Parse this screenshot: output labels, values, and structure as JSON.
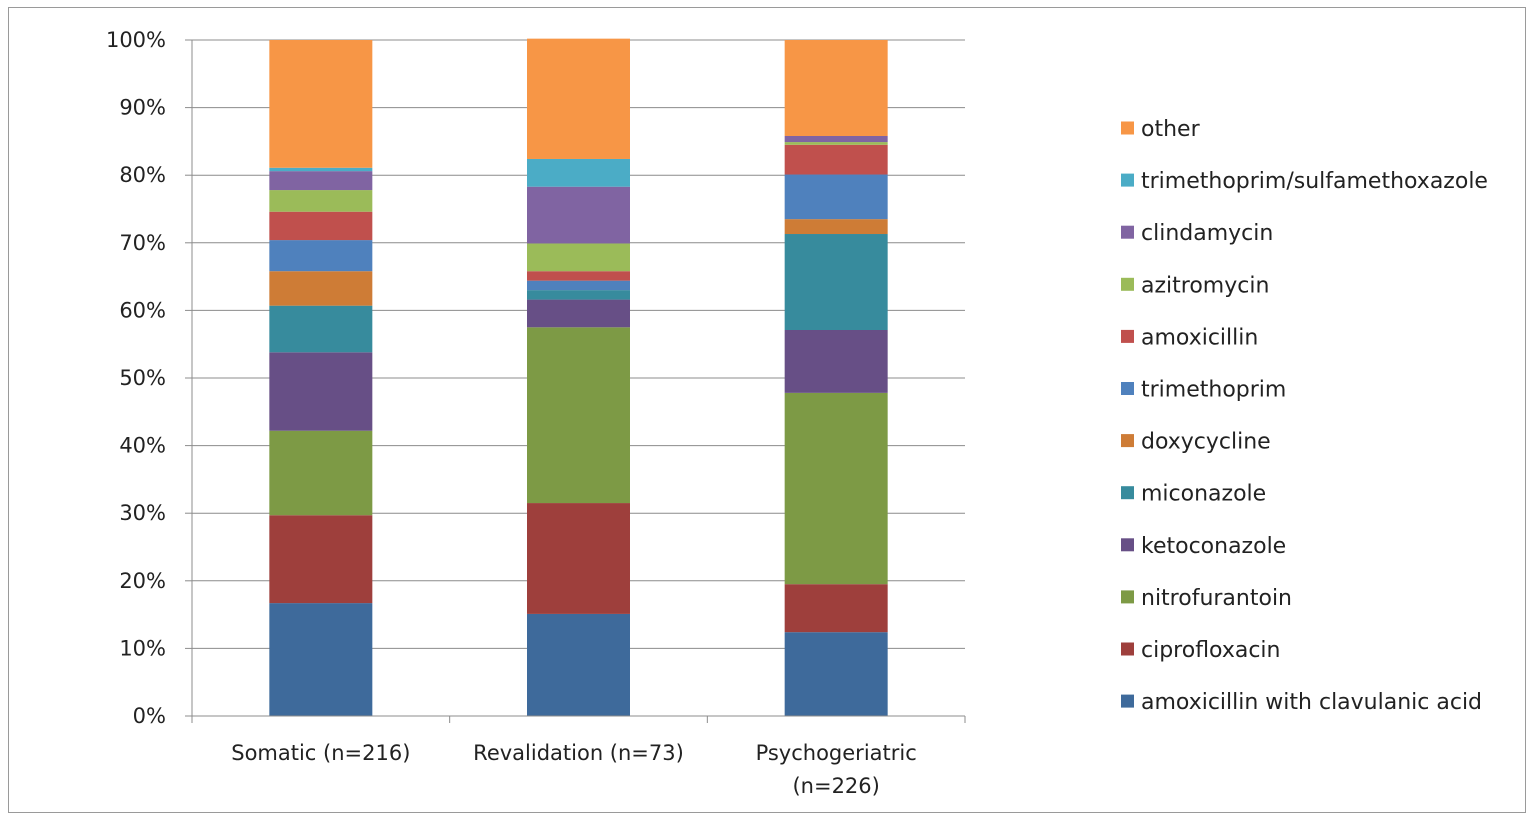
{
  "chart_data": {
    "type": "bar",
    "stacked": true,
    "percent": true,
    "categories": [
      "Somatic (n=216)",
      "Revalidation (n=73)",
      "Psychogeriatric\n(n=226)"
    ],
    "yticks": [
      "0%",
      "10%",
      "20%",
      "30%",
      "40%",
      "50%",
      "60%",
      "70%",
      "80%",
      "90%",
      "100%"
    ],
    "ylim": [
      0,
      100
    ],
    "grid": true,
    "legend_position": "right",
    "series": [
      {
        "name": "amoxicillin with clavulanic acid",
        "color": "#3E6A9B",
        "values": [
          16.7,
          15.1,
          12.4
        ]
      },
      {
        "name": "ciprofloxacin",
        "color": "#9E3F3C",
        "values": [
          13.0,
          16.4,
          7.1
        ]
      },
      {
        "name": "nitrofurantoin",
        "color": "#7D9A45",
        "values": [
          12.5,
          26.0,
          28.3
        ]
      },
      {
        "name": "ketoconazole",
        "color": "#674F86",
        "values": [
          11.6,
          4.1,
          9.3
        ]
      },
      {
        "name": "miconazole",
        "color": "#378B9D",
        "values": [
          6.9,
          1.4,
          14.2
        ]
      },
      {
        "name": "doxycycline",
        "color": "#CE7C36",
        "values": [
          5.1,
          0.0,
          2.2
        ]
      },
      {
        "name": "trimethoprim",
        "color": "#4F81BD",
        "values": [
          4.6,
          1.4,
          6.6
        ]
      },
      {
        "name": "amoxicillin",
        "color": "#C0504D",
        "values": [
          4.2,
          1.4,
          4.4
        ]
      },
      {
        "name": "azitromycin",
        "color": "#9BBB59",
        "values": [
          3.2,
          4.1,
          0.4
        ]
      },
      {
        "name": "clindamycin",
        "color": "#8064A2",
        "values": [
          2.8,
          8.4,
          0.9
        ]
      },
      {
        "name": "trimethoprim/sulfamethoxazole",
        "color": "#4BACC6",
        "values": [
          0.5,
          4.1,
          0.0
        ]
      },
      {
        "name": "other",
        "color": "#F79646",
        "values": [
          18.9,
          17.8,
          14.2
        ]
      }
    ]
  }
}
